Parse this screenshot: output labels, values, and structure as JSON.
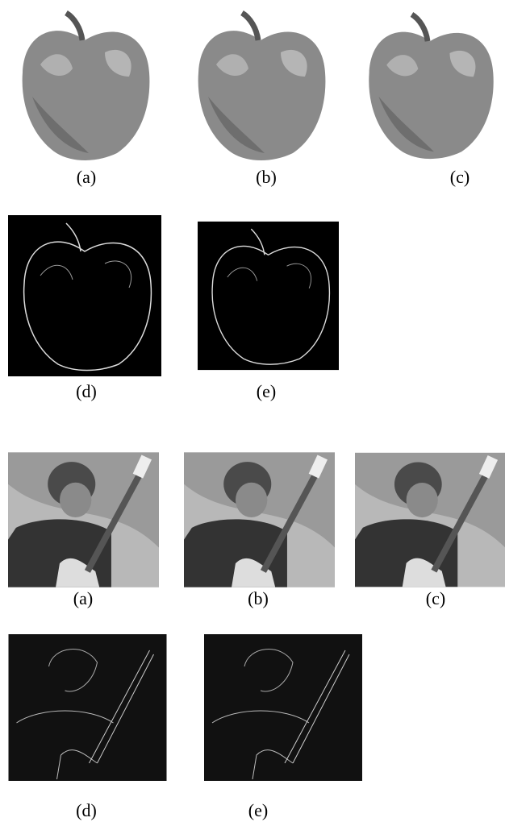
{
  "figures": [
    {
      "rows": [
        [
          "(a)",
          "(b)",
          "(c)"
        ],
        [
          "(d)",
          "(e)"
        ]
      ]
    },
    {
      "rows": [
        [
          "(a)",
          "(b)",
          "(c)"
        ],
        [
          "(d)",
          "(e)"
        ]
      ]
    }
  ]
}
